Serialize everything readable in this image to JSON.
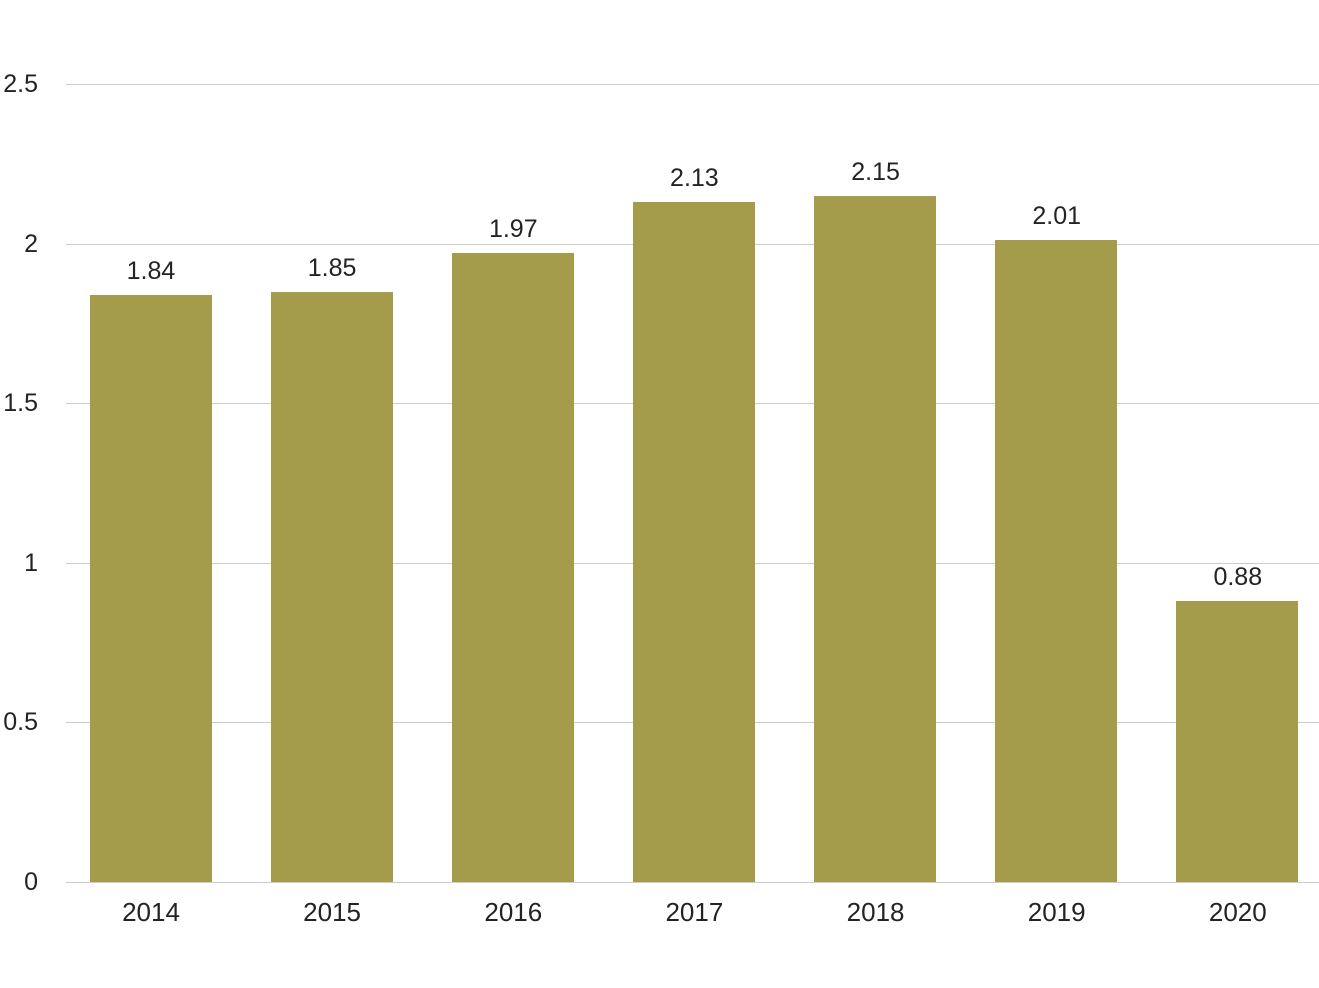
{
  "chart_data": {
    "type": "bar",
    "categories": [
      "2014",
      "2015",
      "2016",
      "2017",
      "2018",
      "2019",
      "2020"
    ],
    "values": [
      1.84,
      1.85,
      1.97,
      2.13,
      2.15,
      2.01,
      0.88
    ],
    "value_labels": [
      "1.84",
      "1.85",
      "1.97",
      "2.13",
      "2.15",
      "2.01",
      "0.88"
    ],
    "title": "",
    "xlabel": "",
    "ylabel": "",
    "ylim": [
      0,
      2.5
    ],
    "yticks": [
      0,
      0.5,
      1,
      1.5,
      2,
      2.5
    ],
    "ytick_labels": [
      "0",
      "0.5",
      "1",
      "1.5",
      "2",
      "2.5"
    ],
    "grid": true,
    "legend": false,
    "colors": {
      "bar": "#a49b4b",
      "grid": "#cccccc",
      "text": "#232323",
      "background": "#ffffff"
    }
  },
  "layout_hints": {
    "gridlines_full_width": true,
    "value_labels_above_bars": true
  }
}
